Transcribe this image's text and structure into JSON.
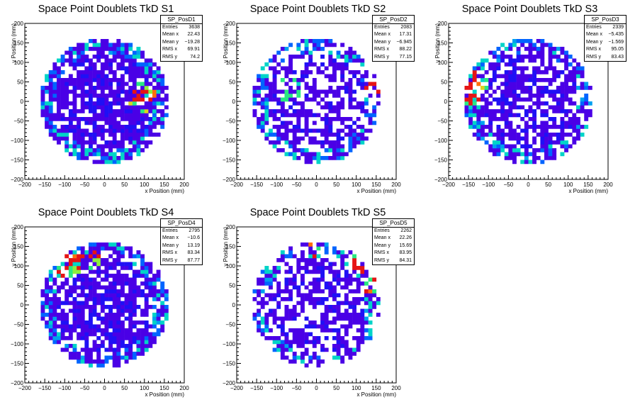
{
  "colors": {
    "palette": [
      "#4a00e6",
      "#1f10f5",
      "#0030ff",
      "#0064ff",
      "#00a0f0",
      "#00d4c8",
      "#28e882",
      "#8cf03c",
      "#dcd21e",
      "#ff6e0a",
      "#e61414"
    ],
    "axis": "#000000",
    "background": "#ffffff"
  },
  "chart_data": [
    {
      "type": "heatmap",
      "name": "SP_PosD1",
      "title": "Space Point Doublets TkD S1",
      "xlabel": "x Position (mm)",
      "ylabel": "y Position (mm)",
      "xlim": [
        -200,
        200
      ],
      "ylim": [
        -200,
        200
      ],
      "xticks": [
        "−200",
        "−150",
        "−100",
        "−50",
        "0",
        "50",
        "100",
        "150",
        "200"
      ],
      "yticks": [
        "−200",
        "−150",
        "−100",
        "−50",
        "0",
        "50",
        "100",
        "150",
        "200"
      ],
      "bins": {
        "width_mm": 10,
        "radius_mm": 160
      },
      "stats": [
        {
          "label": "Entries",
          "value": "3638"
        },
        {
          "label": "Mean x",
          "value": "22.43"
        },
        {
          "label": "Mean y",
          "value": "−19.28"
        },
        {
          "label": "RMS x",
          "value": "69.91"
        },
        {
          "label": "RMS y",
          "value": "74.2"
        }
      ],
      "seed": 11,
      "fill": 0.8,
      "level": 1.7,
      "hot": [
        [
          90,
          0,
          0.6
        ],
        [
          100,
          20,
          0.5
        ]
      ]
    },
    {
      "type": "heatmap",
      "name": "SP_PosD2",
      "title": "Space Point Doublets TkD S2",
      "xlabel": "x Position (mm)",
      "ylabel": "y Position (mm)",
      "xlim": [
        -200,
        200
      ],
      "ylim": [
        -200,
        200
      ],
      "xticks": [
        "−200",
        "−150",
        "−100",
        "−50",
        "0",
        "50",
        "100",
        "150",
        "200"
      ],
      "yticks": [
        "−200",
        "−150",
        "−100",
        "−50",
        "0",
        "50",
        "100",
        "150",
        "200"
      ],
      "bins": {
        "width_mm": 10,
        "radius_mm": 160
      },
      "stats": [
        {
          "label": "Entries",
          "value": "2083"
        },
        {
          "label": "Mean x",
          "value": "17.31"
        },
        {
          "label": "Mean y",
          "value": "−6.945"
        },
        {
          "label": "RMS x",
          "value": "88.22"
        },
        {
          "label": "RMS y",
          "value": "77.15"
        }
      ],
      "seed": 23,
      "fill": 0.58,
      "level": 1.6,
      "hot": [
        [
          150,
          30,
          0.5
        ],
        [
          -70,
          30,
          0.3
        ]
      ]
    },
    {
      "type": "heatmap",
      "name": "SP_PosD3",
      "title": "Space Point Doublets TkD S3",
      "xlabel": "x Position (mm)",
      "ylabel": "y Position (mm)",
      "xlim": [
        -200,
        200
      ],
      "ylim": [
        -200,
        200
      ],
      "xticks": [
        "−200",
        "−150",
        "−100",
        "−50",
        "0",
        "50",
        "100",
        "150",
        "200"
      ],
      "yticks": [
        "−200",
        "−150",
        "−100",
        "−50",
        "0",
        "50",
        "100",
        "150",
        "200"
      ],
      "bins": {
        "width_mm": 10,
        "radius_mm": 160
      },
      "stats": [
        {
          "label": "Entries",
          "value": "2339"
        },
        {
          "label": "Mean x",
          "value": "−5.435"
        },
        {
          "label": "Mean y",
          "value": "−1.569"
        },
        {
          "label": "RMS x",
          "value": "95.05"
        },
        {
          "label": "RMS y",
          "value": "83.43"
        }
      ],
      "seed": 37,
      "fill": 0.68,
      "level": 1.9,
      "hot": [
        [
          -150,
          20,
          0.9
        ],
        [
          -130,
          50,
          0.6
        ]
      ]
    },
    {
      "type": "heatmap",
      "name": "SP_PosD4",
      "title": "Space Point Doublets TkD S4",
      "xlabel": "x Position (mm)",
      "ylabel": "y Position (mm)",
      "xlim": [
        -200,
        200
      ],
      "ylim": [
        -200,
        200
      ],
      "xticks": [
        "−200",
        "−150",
        "−100",
        "−50",
        "0",
        "50",
        "100",
        "150",
        "200"
      ],
      "yticks": [
        "−200",
        "−150",
        "−100",
        "−50",
        "0",
        "50",
        "100",
        "150",
        "200"
      ],
      "bins": {
        "width_mm": 10,
        "radius_mm": 160
      },
      "stats": [
        {
          "label": "Entries",
          "value": "2795"
        },
        {
          "label": "Mean x",
          "value": "−10.6"
        },
        {
          "label": "Mean y",
          "value": "13.19"
        },
        {
          "label": "RMS x",
          "value": "83.34"
        },
        {
          "label": "RMS y",
          "value": "87.77"
        }
      ],
      "seed": 53,
      "fill": 0.74,
      "level": 1.9,
      "hot": [
        [
          -90,
          100,
          0.8
        ],
        [
          -40,
          110,
          0.5
        ]
      ]
    },
    {
      "type": "heatmap",
      "name": "SP_PosD5",
      "title": "Space Point Doublets TkD S5",
      "xlabel": "x Position (mm)",
      "ylabel": "y Position (mm)",
      "xlim": [
        -200,
        200
      ],
      "ylim": [
        -200,
        200
      ],
      "xticks": [
        "−200",
        "−150",
        "−100",
        "−50",
        "0",
        "50",
        "100",
        "150",
        "200"
      ],
      "yticks": [
        "−200",
        "−150",
        "−100",
        "−50",
        "0",
        "50",
        "100",
        "150",
        "200"
      ],
      "bins": {
        "width_mm": 10,
        "radius_mm": 160
      },
      "stats": [
        {
          "label": "Entries",
          "value": "2262"
        },
        {
          "label": "Mean x",
          "value": "22.26"
        },
        {
          "label": "Mean y",
          "value": "15.69"
        },
        {
          "label": "RMS x",
          "value": "83.95"
        },
        {
          "label": "RMS y",
          "value": "84.31"
        }
      ],
      "seed": 71,
      "fill": 0.6,
      "level": 1.8,
      "hot": [
        [
          120,
          110,
          0.9
        ],
        [
          150,
          40,
          0.6
        ],
        [
          -10,
          150,
          0.6
        ]
      ]
    }
  ]
}
